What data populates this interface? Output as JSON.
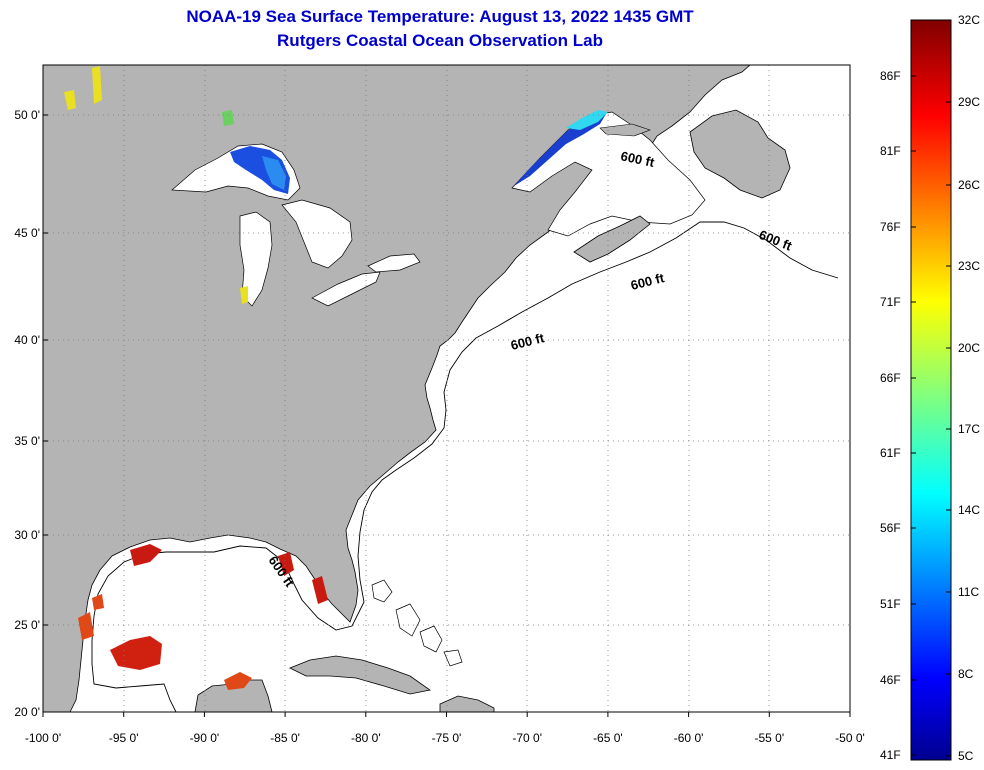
{
  "title": {
    "line1": "NOAA-19 Sea Surface Temperature:  August 13, 2022 1435 GMT",
    "line2": "Rutgers Coastal Ocean Observation Lab"
  },
  "map": {
    "lon_range": [
      -100,
      -50
    ],
    "lat_range": [
      20,
      52
    ],
    "lat_ticks": [
      "50 0'",
      "45 0'",
      "40 0'",
      "35 0'",
      "30 0'",
      "25 0'",
      "20 0'"
    ],
    "lon_ticks": [
      "-100 0'",
      "-95 0'",
      "-90 0'",
      "-85 0'",
      "-80 0'",
      "-75 0'",
      "-70 0'",
      "-65 0'",
      "-60 0'",
      "-55 0'",
      "-50 0'"
    ],
    "isobath_labels": [
      "600 ft",
      "600 ft",
      "600 ft",
      "600 ft",
      "600 ft"
    ],
    "colors": {
      "land": "#b4b4b4",
      "ocean": "#ffffff",
      "grid": "#7a7a7a"
    }
  },
  "colorbar": {
    "celsius_labels": [
      "32C",
      "29C",
      "26C",
      "23C",
      "20C",
      "17C",
      "14C",
      "11C",
      "8C",
      "5C"
    ],
    "fahrenheit_labels": [
      "86F",
      "81F",
      "76F",
      "71F",
      "66F",
      "61F",
      "56F",
      "51F",
      "46F",
      "41F"
    ],
    "range_c": [
      5,
      32
    ]
  }
}
